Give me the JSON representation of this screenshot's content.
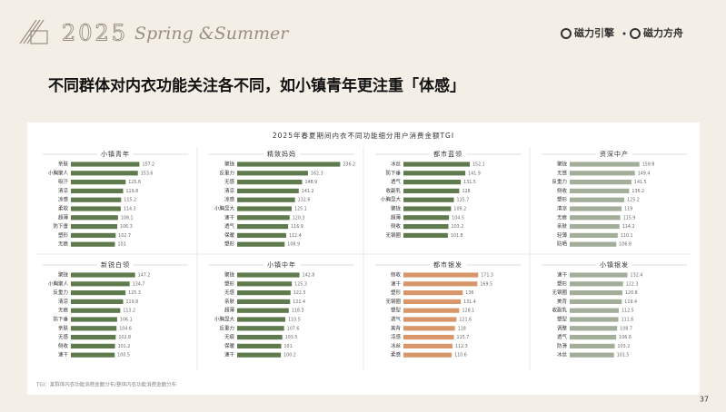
{
  "header": {
    "year": "2025",
    "season": "Spring &Summer",
    "brand_1": "磁力引擎",
    "brand_2": "磁力方舟"
  },
  "title": "不同群体对内衣功能关注各不同，如小镇青年更注重「体感」",
  "card_title": "2025年春夏期间内衣不同功能细分用户消费金额TGI",
  "chart_data": [
    {
      "type": "bar",
      "orientation": "horizontal",
      "title": "小镇青年",
      "color": "#5f7a4c",
      "xlim": [
        0,
        250
      ],
      "categories": [
        "亲肤",
        "小胸聚人",
        "吸汗",
        "清凉",
        "凉感",
        "柔软",
        "超薄",
        "防下垂",
        "塑形",
        "无痕"
      ],
      "values": [
        157.2,
        153.6,
        125.6,
        119.8,
        115.2,
        114.3,
        108.1,
        106.3,
        102.7,
        101.0
      ]
    },
    {
      "type": "bar",
      "orientation": "horizontal",
      "title": "精致妈妈",
      "color": "#5f7a4c",
      "xlim": [
        0,
        250
      ],
      "categories": [
        "聚拢",
        "反重力",
        "无感",
        "清凉",
        "凉感",
        "小胸显大",
        "速干",
        "透气",
        "保暖",
        "塑形"
      ],
      "values": [
        236.2,
        162.3,
        148.9,
        141.2,
        132.6,
        125.1,
        120.3,
        116.9,
        112.4,
        108.9
      ]
    },
    {
      "type": "bar",
      "orientation": "horizontal",
      "title": "都市蓝领",
      "color": "#5f7a4c",
      "xlim": [
        0,
        250
      ],
      "categories": [
        "冰丝",
        "防下垂",
        "透气",
        "收副乳",
        "小胸显大",
        "聚拢",
        "超薄",
        "侧收",
        "无钢圈"
      ],
      "values": [
        152.1,
        141.9,
        131.5,
        128.0,
        115.7,
        109.2,
        104.5,
        103.2,
        101.8
      ]
    },
    {
      "type": "bar",
      "orientation": "horizontal",
      "title": "资深中产",
      "color": "#a3ae9a",
      "xlim": [
        0,
        250
      ],
      "categories": [
        "聚拢",
        "无感",
        "反重力",
        "侧收",
        "塑形",
        "清凉",
        "无痕",
        "亲肤",
        "轻薄",
        "防晒"
      ],
      "values": [
        159.8,
        149.4,
        141.5,
        136.2,
        125.2,
        119.0,
        115.9,
        114.2,
        110.1,
        106.8
      ]
    },
    {
      "type": "bar",
      "orientation": "horizontal",
      "title": "新锐白领",
      "color": "#5f7a4c",
      "xlim": [
        0,
        250
      ],
      "categories": [
        "聚拢",
        "小胸聚人",
        "反重力",
        "清凉",
        "无痕",
        "防下垂",
        "亲肤",
        "无感",
        "侧收",
        "速干"
      ],
      "values": [
        147.2,
        134.7,
        125.3,
        119.8,
        113.2,
        106.1,
        104.6,
        102.8,
        101.2,
        100.5
      ]
    },
    {
      "type": "bar",
      "orientation": "horizontal",
      "title": "小镇中年",
      "color": "#5f7a4c",
      "xlim": [
        0,
        250
      ],
      "categories": [
        "聚拢",
        "塑形",
        "无感",
        "亲肤",
        "超薄",
        "小胸显大",
        "反重力",
        "无痕",
        "保暖",
        "速干"
      ],
      "values": [
        142.8,
        125.3,
        122.5,
        121.4,
        118.3,
        110.5,
        107.6,
        103.5,
        101.0,
        100.2
      ]
    },
    {
      "type": "bar",
      "orientation": "horizontal",
      "title": "都市银发",
      "color": "#d8976b",
      "xlim": [
        0,
        250
      ],
      "categories": [
        "侧收",
        "速干",
        "塑形",
        "无钢圈",
        "塑型",
        "透气",
        "美背",
        "凉感",
        "冰丝",
        "柔感"
      ],
      "values": [
        171.3,
        169.5,
        136.0,
        131.4,
        128.1,
        121.6,
        118.0,
        115.7,
        112.3,
        110.6
      ]
    },
    {
      "type": "bar",
      "orientation": "horizontal",
      "title": "小镇银发",
      "color": "#a3ae9a",
      "xlim": [
        0,
        250
      ],
      "categories": [
        "速干",
        "塑形",
        "无钢圈",
        "美背",
        "收副乳",
        "塑型",
        "调整",
        "透气",
        "防滑",
        "冰丝"
      ],
      "values": [
        132.4,
        122.3,
        120.8,
        119.4,
        112.5,
        111.6,
        108.7,
        106.6,
        103.2,
        101.5
      ]
    }
  ],
  "footnote": "TGI：某群体内衣功能消费金额分布/整体内衣功能消费金额分布",
  "page_number": "37"
}
